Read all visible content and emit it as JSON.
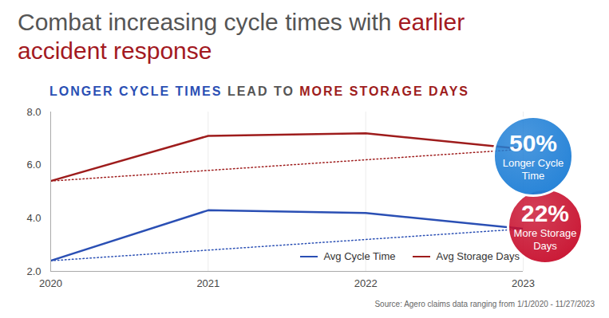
{
  "chart_data": {
    "type": "line",
    "title": [
      "Combat increasing cycle times with ",
      "earlier accident response"
    ],
    "subtitle": [
      "LONGER CYCLE TIMES",
      " LEAD TO ",
      "MORE STORAGE DAYS"
    ],
    "x": [
      2020,
      2021,
      2022,
      2023
    ],
    "xlim": [
      2020,
      2023
    ],
    "xticks": [
      2020,
      2021,
      2022,
      2023
    ],
    "ylim": [
      2,
      8
    ],
    "yticks": [
      2,
      4,
      6,
      8
    ],
    "series": [
      {
        "name": "Avg Cycle Time",
        "color": "#2a4fb4",
        "values": [
          2.4,
          4.3,
          4.2,
          3.6
        ]
      },
      {
        "name": "Avg Storage Days",
        "color": "#9e1c1c",
        "values": [
          5.4,
          7.1,
          7.2,
          6.6
        ]
      }
    ],
    "grid": "x",
    "legend": "lower right",
    "annotations": [
      {
        "text": "50%",
        "label": "Longer Cycle Time",
        "color": "#1f7fd6"
      },
      {
        "text": "22%",
        "label": "More Storage Days",
        "color": "#c8102e"
      }
    ],
    "source": "Source: Agero claims data ranging from 1/1/2020 - 11/27/2023"
  }
}
